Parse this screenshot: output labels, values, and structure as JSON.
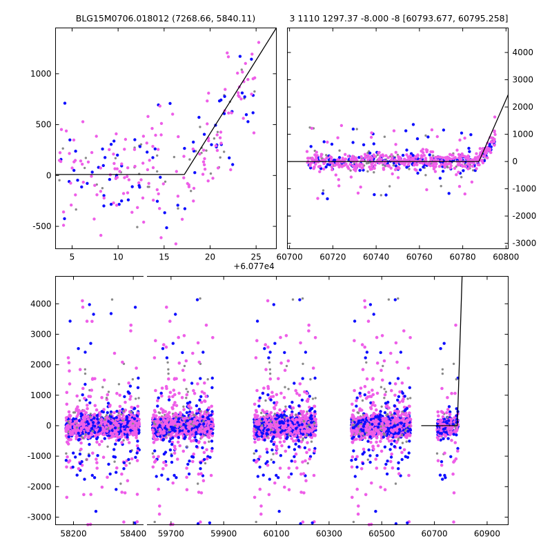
{
  "chart_data": [
    {
      "type": "scatter",
      "panel": "top-left",
      "title": "BLG15M0706.018012 (7268.66, 5840.11)",
      "x_offset_label": "+6.077e4",
      "xlim": [
        3.2,
        27.2
      ],
      "ylim": [
        -720,
        1450
      ],
      "xticks": [
        5,
        10,
        15,
        20,
        25
      ],
      "yticks": [
        -500,
        0,
        500,
        1000
      ],
      "yaxis_side": "left",
      "series_colors": {
        "gray": "#8a8a8a",
        "blue": "#0d0dff",
        "magenta": "#ee5ee8"
      },
      "model": {
        "x": [
          3.2,
          17.2,
          27.2
        ],
        "y": [
          10,
          10,
          1450
        ]
      },
      "cluster": {
        "x_start": 3.5,
        "x_end": 25.5,
        "y_flat": 20,
        "y_rise_start_x": 17.5,
        "y_rise_end": 1100
      }
    },
    {
      "type": "scatter",
      "panel": "top-right",
      "title": "3 1110 1297.37 -8.000 -8 [60793.677, 60795.258]",
      "xlim": [
        60699,
        60801
      ],
      "ylim": [
        -3200,
        4900
      ],
      "xticks": [
        60700,
        60720,
        60740,
        60760,
        60780,
        60800
      ],
      "yticks": [
        -3000,
        -2000,
        -1000,
        0,
        1000,
        2000,
        3000,
        4000
      ],
      "yaxis_side": "right",
      "model": {
        "x": [
          60699,
          60787.5,
          60801
        ],
        "y": [
          0,
          0,
          2450
        ]
      },
      "cluster": {
        "x_start": 60708,
        "x_end": 60795,
        "y_flat": 0,
        "y_rise_start_x": 60787,
        "y_rise_end": 800
      }
    },
    {
      "type": "scatter",
      "panel": "bottom",
      "segments": [
        {
          "xlim": [
            58140,
            58440
          ],
          "xticks": [
            58200,
            58400
          ]
        },
        {
          "xlim": [
            59610,
            60980
          ],
          "xticks": [
            59700,
            59900,
            60100,
            60300,
            60500,
            60700,
            60900
          ]
        }
      ],
      "ylim": [
        -3250,
        4900
      ],
      "yticks": [
        -3000,
        -2000,
        -1000,
        0,
        1000,
        2000,
        3000,
        4000
      ],
      "seasons": [
        {
          "x": [
            58175,
            58420
          ]
        },
        {
          "x": [
            59630,
            59860
          ]
        },
        {
          "x": [
            60015,
            60250
          ]
        },
        {
          "x": [
            60385,
            60610
          ]
        },
        {
          "x": [
            60710,
            60790
          ]
        }
      ],
      "model": {
        "x": [
          60650,
          60787,
          60805
        ],
        "y": [
          0,
          0,
          4900
        ]
      }
    }
  ]
}
